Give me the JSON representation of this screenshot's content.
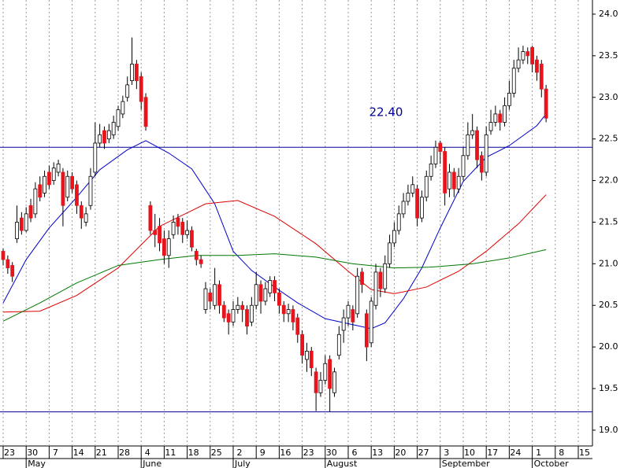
{
  "chart_data": {
    "type": "candlestick",
    "candles": [
      [
        21.15,
        21.18,
        20.98,
        21.05
      ],
      [
        21.05,
        21.1,
        20.88,
        20.95
      ],
      [
        20.98,
        21.02,
        20.78,
        20.85
      ],
      [
        21.3,
        21.7,
        21.25,
        21.5
      ],
      [
        21.55,
        21.62,
        21.35,
        21.4
      ],
      [
        21.4,
        21.68,
        21.38,
        21.6
      ],
      [
        21.7,
        21.78,
        21.5,
        21.55
      ],
      [
        21.6,
        21.98,
        21.55,
        21.9
      ],
      [
        21.95,
        22.05,
        21.75,
        21.8
      ],
      [
        21.85,
        22.12,
        21.8,
        22.05
      ],
      [
        22.1,
        22.18,
        21.9,
        21.95
      ],
      [
        22.0,
        22.22,
        21.95,
        22.15
      ],
      [
        22.1,
        22.25,
        22.05,
        22.2
      ],
      [
        22.1,
        22.15,
        21.45,
        21.7
      ],
      [
        21.8,
        22.12,
        21.75,
        22.05
      ],
      [
        22.05,
        22.1,
        21.85,
        21.9
      ],
      [
        21.95,
        22.0,
        21.6,
        21.7
      ],
      [
        21.7,
        21.75,
        21.42,
        21.55
      ],
      [
        21.5,
        21.68,
        21.45,
        21.6
      ],
      [
        21.7,
        22.15,
        21.65,
        22.05
      ],
      [
        22.1,
        22.7,
        22.05,
        22.45
      ],
      [
        22.45,
        22.68,
        22.4,
        22.55
      ],
      [
        22.6,
        22.65,
        22.38,
        22.45
      ],
      [
        22.5,
        22.68,
        22.45,
        22.6
      ],
      [
        22.55,
        22.78,
        22.5,
        22.7
      ],
      [
        22.65,
        22.9,
        22.6,
        22.85
      ],
      [
        22.8,
        23.02,
        22.75,
        22.95
      ],
      [
        23.0,
        23.25,
        22.95,
        23.15
      ],
      [
        23.2,
        23.72,
        23.15,
        23.4
      ],
      [
        23.4,
        23.45,
        23.1,
        23.2
      ],
      [
        23.25,
        23.3,
        22.85,
        22.95
      ],
      [
        23.0,
        23.05,
        22.6,
        22.65
      ],
      [
        21.7,
        21.75,
        21.35,
        21.4
      ],
      [
        21.4,
        21.6,
        21.2,
        21.35
      ],
      [
        21.45,
        21.55,
        21.15,
        21.25
      ],
      [
        21.3,
        21.4,
        21.0,
        21.1
      ],
      [
        21.1,
        21.4,
        20.95,
        21.3
      ],
      [
        21.35,
        21.58,
        21.3,
        21.5
      ],
      [
        21.55,
        21.6,
        21.35,
        21.45
      ],
      [
        21.5,
        21.55,
        21.25,
        21.35
      ],
      [
        21.35,
        21.52,
        21.3,
        21.4
      ],
      [
        21.4,
        21.45,
        21.15,
        21.2
      ],
      [
        21.15,
        21.18,
        20.98,
        21.05
      ],
      [
        21.05,
        21.1,
        20.95,
        21.0
      ],
      [
        20.45,
        20.78,
        20.4,
        20.7
      ],
      [
        20.65,
        20.7,
        20.45,
        20.55
      ],
      [
        20.5,
        20.95,
        20.45,
        20.75
      ],
      [
        20.75,
        20.8,
        20.4,
        20.5
      ],
      [
        20.5,
        20.55,
        20.3,
        20.35
      ],
      [
        20.4,
        20.45,
        20.15,
        20.3
      ],
      [
        20.3,
        20.55,
        20.25,
        20.45
      ],
      [
        20.45,
        20.6,
        20.4,
        20.5
      ],
      [
        20.5,
        20.55,
        20.3,
        20.45
      ],
      [
        20.45,
        20.5,
        20.15,
        20.25
      ],
      [
        20.3,
        20.6,
        20.25,
        20.5
      ],
      [
        20.5,
        20.9,
        20.45,
        20.75
      ],
      [
        20.75,
        20.8,
        20.4,
        20.55
      ],
      [
        20.55,
        20.78,
        20.5,
        20.7
      ],
      [
        20.65,
        20.85,
        20.6,
        20.8
      ],
      [
        20.8,
        20.85,
        20.55,
        20.65
      ],
      [
        20.65,
        20.7,
        20.4,
        20.5
      ],
      [
        20.5,
        20.55,
        20.3,
        20.4
      ],
      [
        20.4,
        20.52,
        20.3,
        20.45
      ],
      [
        20.45,
        20.5,
        20.2,
        20.3
      ],
      [
        20.35,
        20.4,
        20.05,
        20.15
      ],
      [
        20.15,
        20.2,
        19.8,
        19.9
      ],
      [
        19.85,
        20.05,
        19.7,
        19.95
      ],
      [
        19.95,
        20.0,
        19.65,
        19.75
      ],
      [
        19.7,
        19.75,
        19.23,
        19.45
      ],
      [
        19.45,
        19.7,
        19.4,
        19.6
      ],
      [
        19.6,
        19.9,
        19.55,
        19.8
      ],
      [
        19.85,
        19.9,
        19.22,
        19.5
      ],
      [
        19.45,
        19.75,
        19.4,
        19.7
      ],
      [
        19.9,
        20.25,
        19.85,
        20.15
      ],
      [
        20.2,
        20.45,
        20.05,
        20.35
      ],
      [
        20.35,
        20.55,
        20.25,
        20.5
      ],
      [
        20.45,
        20.5,
        20.2,
        20.3
      ],
      [
        20.4,
        20.95,
        20.35,
        20.85
      ],
      [
        20.9,
        20.95,
        20.65,
        20.75
      ],
      [
        20.4,
        20.45,
        19.83,
        20.0
      ],
      [
        20.05,
        20.6,
        20.0,
        20.55
      ],
      [
        20.5,
        21.0,
        20.45,
        20.9
      ],
      [
        20.9,
        20.95,
        20.6,
        20.7
      ],
      [
        20.7,
        21.1,
        20.65,
        21.0
      ],
      [
        21.0,
        21.35,
        20.95,
        21.25
      ],
      [
        21.25,
        21.5,
        21.2,
        21.4
      ],
      [
        21.4,
        21.7,
        21.35,
        21.6
      ],
      [
        21.6,
        21.85,
        21.55,
        21.75
      ],
      [
        21.75,
        21.95,
        21.7,
        21.85
      ],
      [
        21.85,
        22.05,
        21.8,
        21.95
      ],
      [
        21.9,
        21.95,
        21.45,
        21.55
      ],
      [
        21.55,
        21.88,
        21.5,
        21.8
      ],
      [
        21.8,
        22.12,
        21.75,
        22.05
      ],
      [
        22.05,
        22.3,
        22.0,
        22.2
      ],
      [
        22.2,
        22.48,
        22.15,
        22.4
      ],
      [
        22.45,
        22.48,
        22.2,
        22.35
      ],
      [
        22.35,
        22.4,
        21.7,
        21.85
      ],
      [
        21.9,
        22.2,
        21.8,
        22.1
      ],
      [
        22.1,
        22.15,
        21.8,
        21.9
      ],
      [
        21.9,
        22.15,
        21.85,
        22.05
      ],
      [
        22.05,
        22.4,
        22.0,
        22.3
      ],
      [
        22.3,
        22.7,
        22.25,
        22.55
      ],
      [
        22.55,
        22.8,
        22.5,
        22.6
      ],
      [
        22.6,
        22.65,
        22.15,
        22.25
      ],
      [
        22.3,
        22.35,
        22.0,
        22.1
      ],
      [
        22.1,
        22.65,
        22.05,
        22.55
      ],
      [
        22.6,
        22.85,
        22.55,
        22.7
      ],
      [
        22.7,
        22.9,
        22.65,
        22.8
      ],
      [
        22.8,
        22.85,
        22.6,
        22.7
      ],
      [
        22.7,
        23.0,
        22.65,
        22.9
      ],
      [
        22.9,
        23.2,
        22.85,
        23.05
      ],
      [
        23.05,
        23.45,
        23.0,
        23.35
      ],
      [
        23.35,
        23.6,
        23.3,
        23.45
      ],
      [
        23.45,
        23.62,
        23.4,
        23.55
      ],
      [
        23.55,
        23.6,
        23.4,
        23.5
      ],
      [
        23.6,
        23.62,
        23.3,
        23.4
      ],
      [
        23.45,
        23.5,
        23.2,
        23.3
      ],
      [
        23.4,
        23.45,
        23.0,
        23.1
      ],
      [
        23.1,
        23.15,
        22.7,
        22.75
      ]
    ],
    "colors": {
      "up": "#ffffff",
      "down": "#e8141c",
      "outline": "#000000"
    },
    "lines": [
      {
        "color": "#0000cc",
        "x": [
          0,
          5,
          10,
          16,
          21,
          27,
          31,
          36,
          41,
          46,
          50,
          54,
          59,
          64,
          70,
          75,
          80,
          83,
          87,
          91,
          95,
          100,
          105,
          110,
          116,
          118
        ],
        "values": [
          20.53,
          21.05,
          21.43,
          21.8,
          22.13,
          22.37,
          22.48,
          22.33,
          22.14,
          21.72,
          21.15,
          20.92,
          20.72,
          20.53,
          20.34,
          20.28,
          20.22,
          20.29,
          20.58,
          20.95,
          21.43,
          21.99,
          22.28,
          22.42,
          22.66,
          22.8
        ]
      },
      {
        "color": "#dd0000",
        "x": [
          0,
          8,
          16,
          25,
          34,
          44,
          51,
          59,
          68,
          75,
          80,
          85,
          92,
          99,
          105,
          112,
          118
        ],
        "values": [
          20.42,
          20.43,
          20.62,
          20.95,
          21.45,
          21.72,
          21.76,
          21.57,
          21.24,
          20.91,
          20.69,
          20.64,
          20.72,
          20.91,
          21.15,
          21.48,
          21.83
        ]
      },
      {
        "color": "#007700",
        "x": [
          0,
          8,
          16,
          25,
          34,
          42,
          51,
          59,
          68,
          76,
          85,
          93,
          102,
          110,
          118
        ],
        "values": [
          20.31,
          20.53,
          20.77,
          20.98,
          21.05,
          21.1,
          21.1,
          21.12,
          21.08,
          21.0,
          20.95,
          20.96,
          21.0,
          21.07,
          21.17
        ]
      }
    ],
    "hlines": [
      {
        "value": 22.4,
        "label": "22.40"
      },
      {
        "value": 19.22
      }
    ],
    "hline_color": "#000099",
    "ylim": [
      18.81,
      24.17
    ],
    "yticks": [
      {
        "value": 19,
        "label": "19.0"
      },
      {
        "value": 19.5,
        "label": "19.5"
      },
      {
        "value": 20,
        "label": "20.0"
      },
      {
        "value": 20.5,
        "label": "20.5"
      },
      {
        "value": 21,
        "label": "21.0"
      },
      {
        "value": 21.5,
        "label": "21.5"
      },
      {
        "value": 22,
        "label": "22.0"
      },
      {
        "value": 22.5,
        "label": "22.5"
      },
      {
        "value": 23,
        "label": "23.0"
      },
      {
        "value": 23.5,
        "label": "23.5"
      },
      {
        "value": 24,
        "label": "24.0"
      }
    ],
    "x_labels": [
      "23",
      "30",
      "7",
      "14",
      "21",
      "28",
      "4",
      "11",
      "18",
      "25",
      "2",
      "9",
      "16",
      "23",
      "30",
      "6",
      "13",
      "20",
      "27",
      "3",
      "10",
      "17",
      "24",
      "1",
      "8",
      "15"
    ],
    "x_months": [
      null,
      "May",
      null,
      null,
      null,
      null,
      "June",
      null,
      null,
      null,
      "July",
      null,
      null,
      null,
      "August",
      null,
      null,
      null,
      null,
      "September",
      null,
      null,
      null,
      "October",
      null,
      null
    ],
    "grid": true
  }
}
